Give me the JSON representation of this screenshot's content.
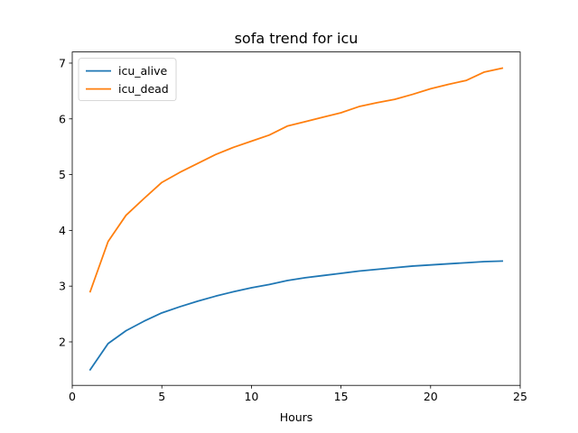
{
  "chart_data": {
    "type": "line",
    "title": "sofa trend for icu",
    "xlabel": "Hours",
    "ylabel": "",
    "xlim": [
      0,
      25
    ],
    "ylim": [
      1.5,
      7
    ],
    "xticks": [
      0,
      5,
      10,
      15,
      20,
      25
    ],
    "yticks": [
      2,
      3,
      4,
      5,
      6,
      7
    ],
    "legend_position": "upper-left",
    "grid": false,
    "x": [
      1,
      2,
      3,
      4,
      5,
      6,
      7,
      8,
      9,
      10,
      11,
      12,
      13,
      14,
      15,
      16,
      17,
      18,
      19,
      20,
      21,
      22,
      23,
      24
    ],
    "series": [
      {
        "name": "icu_alive",
        "color": "#1f77b4",
        "values": [
          1.5,
          1.97,
          2.2,
          2.37,
          2.52,
          2.63,
          2.73,
          2.82,
          2.9,
          2.97,
          3.03,
          3.1,
          3.15,
          3.19,
          3.23,
          3.27,
          3.3,
          3.33,
          3.36,
          3.38,
          3.4,
          3.42,
          3.44,
          3.45
        ]
      },
      {
        "name": "icu_dead",
        "color": "#ff7f0e",
        "values": [
          2.9,
          3.8,
          4.27,
          4.57,
          4.86,
          5.04,
          5.2,
          5.36,
          5.49,
          5.6,
          5.71,
          5.87,
          5.95,
          6.03,
          6.11,
          6.22,
          6.29,
          6.35,
          6.44,
          6.54,
          6.62,
          6.69,
          6.84,
          6.91
        ]
      }
    ]
  }
}
